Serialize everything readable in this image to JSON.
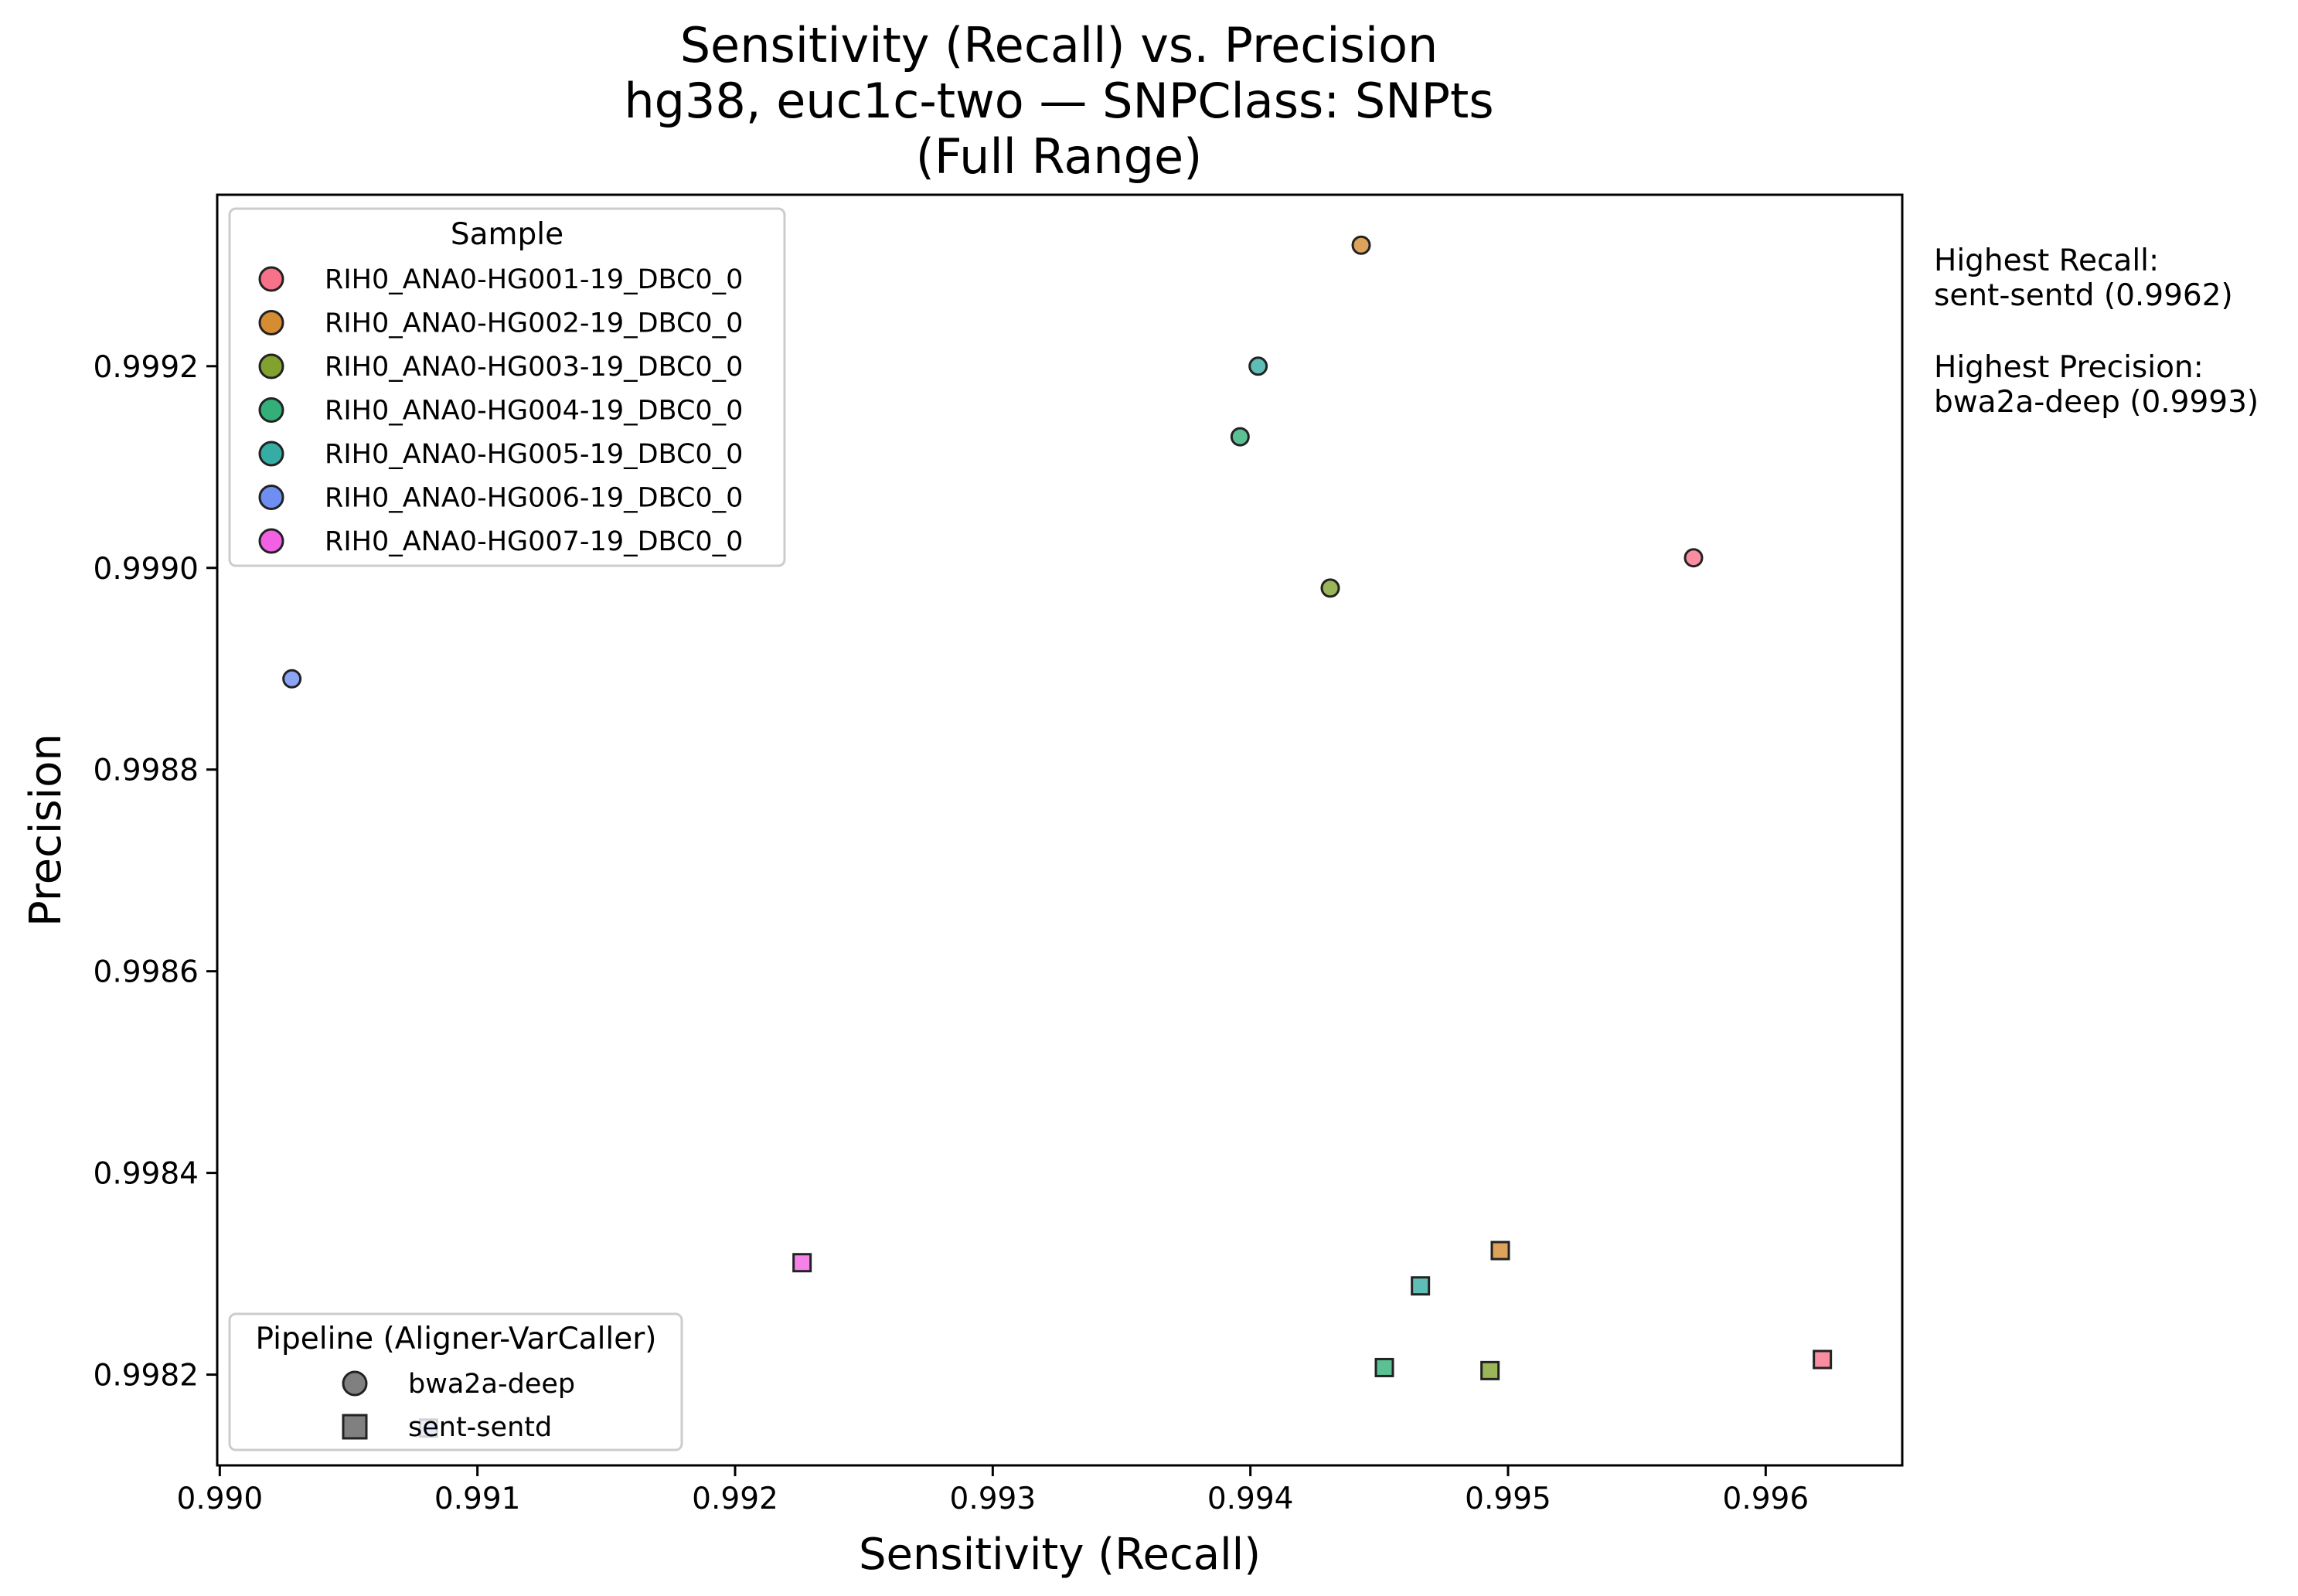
{
  "chart_data": {
    "type": "scatter",
    "title": [
      "Sensitivity (Recall) vs. Precision",
      "hg38, euc1c-two — SNPClass: SNPts",
      "(Full Range)"
    ],
    "xlabel": "Sensitivity (Recall)",
    "ylabel": "Precision",
    "xlim": [
      0.98999,
      0.99653
    ],
    "ylim": [
      0.99811,
      0.99937
    ],
    "xticks": [
      0.99,
      0.991,
      0.992,
      0.993,
      0.994,
      0.995,
      0.996
    ],
    "xtick_labels": [
      "0.990",
      "0.991",
      "0.992",
      "0.993",
      "0.994",
      "0.995",
      "0.996"
    ],
    "yticks": [
      0.9982,
      0.9984,
      0.9986,
      0.9988,
      0.999,
      0.9992
    ],
    "ytick_labels": [
      "0.9982",
      "0.9984",
      "0.9986",
      "0.9988",
      "0.9990",
      "0.9992"
    ],
    "grid": false,
    "samples": [
      {
        "name": "RIH0_ANA0-HG001-19_DBC0_0",
        "color": "#f77189"
      },
      {
        "name": "RIH0_ANA0-HG002-19_DBC0_0",
        "color": "#d58c32"
      },
      {
        "name": "RIH0_ANA0-HG003-19_DBC0_0",
        "color": "#82a22f"
      },
      {
        "name": "RIH0_ANA0-HG004-19_DBC0_0",
        "color": "#33b07a"
      },
      {
        "name": "RIH0_ANA0-HG005-19_DBC0_0",
        "color": "#36ada4"
      },
      {
        "name": "RIH0_ANA0-HG006-19_DBC0_0",
        "color": "#6e8ef1"
      },
      {
        "name": "RIH0_ANA0-HG007-19_DBC0_0",
        "color": "#f261e4"
      }
    ],
    "pipelines": [
      {
        "name": "bwa2a-deep",
        "marker": "circle"
      },
      {
        "name": "sent-sentd",
        "marker": "square"
      }
    ],
    "points": [
      {
        "sample": 0,
        "pipeline": 0,
        "x": 0.99572,
        "y": 0.99901
      },
      {
        "sample": 1,
        "pipeline": 0,
        "x": 0.99443,
        "y": 0.99932
      },
      {
        "sample": 2,
        "pipeline": 0,
        "x": 0.99431,
        "y": 0.99898
      },
      {
        "sample": 3,
        "pipeline": 0,
        "x": 0.99396,
        "y": 0.99913
      },
      {
        "sample": 4,
        "pipeline": 0,
        "x": 0.99403,
        "y": 0.9992
      },
      {
        "sample": 5,
        "pipeline": 0,
        "x": 0.99028,
        "y": 0.99889
      },
      {
        "sample": 0,
        "pipeline": 1,
        "x": 0.99622,
        "y": 0.998215
      },
      {
        "sample": 1,
        "pipeline": 1,
        "x": 0.99497,
        "y": 0.998323
      },
      {
        "sample": 2,
        "pipeline": 1,
        "x": 0.99493,
        "y": 0.998204
      },
      {
        "sample": 3,
        "pipeline": 1,
        "x": 0.99452,
        "y": 0.998207
      },
      {
        "sample": 4,
        "pipeline": 1,
        "x": 0.99466,
        "y": 0.998288
      },
      {
        "sample": 5,
        "pipeline": 1,
        "x": 0.99081,
        "y": 0.998147
      },
      {
        "sample": 6,
        "pipeline": 1,
        "x": 0.99226,
        "y": 0.998311
      }
    ],
    "legend_sample_title": "Sample",
    "legend_sample_position": "upper-left",
    "legend_pipeline_title": "Pipeline (Aligner-VarCaller)",
    "legend_pipeline_position": "lower-left",
    "annotations": [
      "Highest Recall:",
      "sent-sentd (0.9962)",
      "Highest Precision:",
      "bwa2a-deep (0.9993)"
    ]
  }
}
